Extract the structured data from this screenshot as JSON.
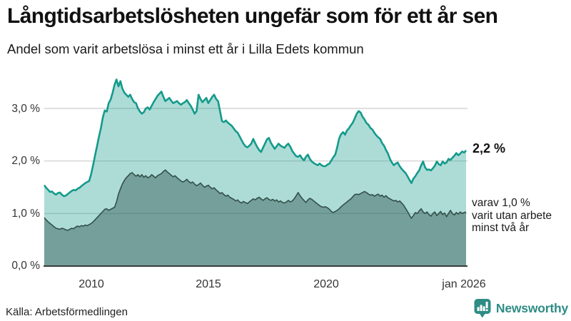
{
  "header": {
    "title": "Långtidsarbetslösheten ungefär som för ett år sen",
    "subtitle": "Andel som varit arbetslösa i minst ett år i Lilla Edets kommun"
  },
  "footer": {
    "source": "Källa: Arbetsförmedlingen",
    "brand": "Newsworthy"
  },
  "chart_data": {
    "type": "area",
    "title": "Långtidsarbetslösheten ungefär som för ett år sen",
    "subtitle": "Andel som varit arbetslösa i minst ett år i Lilla Edets kommun",
    "unit": "%",
    "x_interval": "monthly",
    "x_range": [
      2008.0,
      2026.0
    ],
    "ylim": [
      0,
      3.65
    ],
    "grid": "horizontal",
    "legend_position": "right-annotations",
    "x_tick_labels": [
      "2010",
      "2015",
      "2020",
      "jan 2026"
    ],
    "x_tick_values": [
      2010,
      2015,
      2020,
      2026
    ],
    "y_tick_labels": [
      "3,0 %",
      "2,0 %",
      "1,0 %",
      "0,0 %"
    ],
    "y_tick_values": [
      3,
      2,
      1,
      0
    ],
    "source": "Källa: Arbetsförmedlingen",
    "colors": {
      "accent_teal": "#149a8b",
      "light_fill": "rgba(20,154,139,0.35)",
      "dark_line": "#334f4a",
      "dark_fill": "rgba(32,68,62,0.40)",
      "gridline": "#cccccc",
      "axis": "#3a3a3a",
      "brand_teal": "#2e8c85"
    },
    "series": [
      {
        "name": "Andel arbetslösa minst ett år",
        "line_color": "#149a8b",
        "fill_color": "rgba(20,154,139,0.35)",
        "line_width": 2.6,
        "end_value": 2.2,
        "end_value_label": "2,2 %",
        "values": [
          1.54,
          1.49,
          1.45,
          1.41,
          1.42,
          1.38,
          1.36,
          1.39,
          1.4,
          1.36,
          1.33,
          1.34,
          1.37,
          1.4,
          1.43,
          1.45,
          1.44,
          1.47,
          1.49,
          1.52,
          1.55,
          1.58,
          1.6,
          1.62,
          1.75,
          1.92,
          2.1,
          2.28,
          2.46,
          2.62,
          2.83,
          2.96,
          2.94,
          3.1,
          3.17,
          3.3,
          3.45,
          3.55,
          3.42,
          3.52,
          3.38,
          3.3,
          3.26,
          3.22,
          3.26,
          3.18,
          3.12,
          3.1,
          3.0,
          2.94,
          2.9,
          2.93,
          3.0,
          3.02,
          2.98,
          3.05,
          3.12,
          3.18,
          3.24,
          3.28,
          3.32,
          3.22,
          3.14,
          3.17,
          3.2,
          3.15,
          3.1,
          3.12,
          3.14,
          3.1,
          3.07,
          3.1,
          3.12,
          3.16,
          3.1,
          3.05,
          2.98,
          2.9,
          2.95,
          3.26,
          3.18,
          3.12,
          3.16,
          3.2,
          3.1,
          3.16,
          3.22,
          3.26,
          3.18,
          3.14,
          2.95,
          2.76,
          2.74,
          2.77,
          2.73,
          2.7,
          2.67,
          2.62,
          2.57,
          2.54,
          2.47,
          2.4,
          2.33,
          2.28,
          2.26,
          2.29,
          2.33,
          2.42,
          2.34,
          2.27,
          2.21,
          2.17,
          2.25,
          2.33,
          2.41,
          2.44,
          2.35,
          2.29,
          2.23,
          2.28,
          2.33,
          2.29,
          2.27,
          2.25,
          2.3,
          2.33,
          2.27,
          2.19,
          2.14,
          2.09,
          2.08,
          2.11,
          2.05,
          2.01,
          2.08,
          2.12,
          2.04,
          1.99,
          1.96,
          1.94,
          1.92,
          1.95,
          1.92,
          1.9,
          1.9,
          1.93,
          1.95,
          2.01,
          2.07,
          2.12,
          2.26,
          2.43,
          2.51,
          2.55,
          2.5,
          2.58,
          2.62,
          2.68,
          2.73,
          2.81,
          2.9,
          2.95,
          2.92,
          2.84,
          2.79,
          2.72,
          2.69,
          2.63,
          2.6,
          2.54,
          2.49,
          2.45,
          2.42,
          2.34,
          2.29,
          2.21,
          2.14,
          2.04,
          1.97,
          1.92,
          1.95,
          1.97,
          1.9,
          1.85,
          1.81,
          1.77,
          1.71,
          1.64,
          1.58,
          1.66,
          1.71,
          1.77,
          1.82,
          1.92,
          1.99,
          1.88,
          1.83,
          1.84,
          1.82,
          1.86,
          1.91,
          1.99,
          1.94,
          1.92,
          1.99,
          1.95,
          1.97,
          2.04,
          2.02,
          2.06,
          2.1,
          2.15,
          2.11,
          2.14,
          2.18,
          2.16,
          2.2
        ]
      },
      {
        "name": "Varav utan arbete minst två år",
        "line_color": "#334f4a",
        "fill_color": "rgba(32,68,62,0.40)",
        "line_width": 1.6,
        "end_value": 1.0,
        "end_value_label": "varav 1,0 %",
        "annotation_lines": [
          "varav 1,0 %",
          "varit utan arbete",
          "minst två år"
        ],
        "values": [
          0.92,
          0.88,
          0.84,
          0.81,
          0.78,
          0.75,
          0.72,
          0.71,
          0.7,
          0.72,
          0.71,
          0.69,
          0.68,
          0.7,
          0.72,
          0.71,
          0.74,
          0.76,
          0.75,
          0.77,
          0.76,
          0.78,
          0.77,
          0.79,
          0.81,
          0.84,
          0.88,
          0.92,
          0.96,
          1.0,
          1.04,
          1.08,
          1.09,
          1.06,
          1.08,
          1.1,
          1.12,
          1.22,
          1.37,
          1.47,
          1.56,
          1.63,
          1.68,
          1.72,
          1.76,
          1.78,
          1.74,
          1.71,
          1.74,
          1.7,
          1.74,
          1.69,
          1.72,
          1.68,
          1.7,
          1.74,
          1.71,
          1.68,
          1.72,
          1.74,
          1.76,
          1.8,
          1.83,
          1.79,
          1.76,
          1.73,
          1.7,
          1.72,
          1.68,
          1.65,
          1.62,
          1.6,
          1.62,
          1.65,
          1.61,
          1.58,
          1.6,
          1.56,
          1.53,
          1.55,
          1.58,
          1.54,
          1.5,
          1.52,
          1.54,
          1.5,
          1.47,
          1.49,
          1.45,
          1.42,
          1.38,
          1.4,
          1.36,
          1.33,
          1.35,
          1.31,
          1.29,
          1.27,
          1.24,
          1.26,
          1.22,
          1.2,
          1.23,
          1.21,
          1.19,
          1.22,
          1.25,
          1.28,
          1.26,
          1.29,
          1.31,
          1.28,
          1.25,
          1.28,
          1.3,
          1.27,
          1.25,
          1.27,
          1.24,
          1.26,
          1.22,
          1.24,
          1.21,
          1.2,
          1.22,
          1.25,
          1.22,
          1.24,
          1.28,
          1.34,
          1.4,
          1.34,
          1.29,
          1.25,
          1.21,
          1.26,
          1.29,
          1.27,
          1.24,
          1.21,
          1.18,
          1.15,
          1.13,
          1.12,
          1.13,
          1.11,
          1.08,
          1.04,
          1.02,
          1.04,
          1.06,
          1.09,
          1.13,
          1.16,
          1.19,
          1.22,
          1.25,
          1.28,
          1.32,
          1.36,
          1.37,
          1.36,
          1.38,
          1.4,
          1.42,
          1.4,
          1.37,
          1.35,
          1.36,
          1.33,
          1.35,
          1.37,
          1.33,
          1.35,
          1.31,
          1.34,
          1.3,
          1.28,
          1.26,
          1.24,
          1.25,
          1.22,
          1.24,
          1.2,
          1.16,
          1.1,
          1.04,
          0.97,
          0.91,
          0.96,
          1.02,
          1.0,
          1.05,
          1.09,
          1.03,
          1.0,
          1.03,
          0.98,
          0.95,
          1.0,
          1.03,
          0.96,
          1.0,
          1.04,
          0.98,
          1.01,
          0.94,
          1.0,
          1.06,
          1.0,
          0.97,
          1.02,
          0.99,
          1.03,
          1.0,
          1.02,
          1.03
        ]
      }
    ]
  }
}
